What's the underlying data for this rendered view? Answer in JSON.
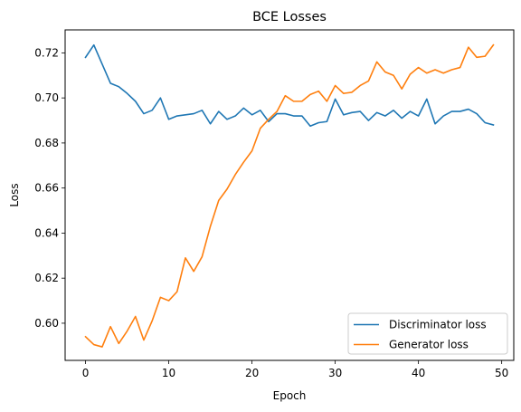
{
  "chart_data": {
    "type": "line",
    "title": "BCE Losses",
    "xlabel": "Epoch",
    "ylabel": "Loss",
    "xlim": [
      -2.45,
      51.45
    ],
    "ylim": [
      0.5835,
      0.7302
    ],
    "xticks": [
      0,
      10,
      20,
      30,
      40,
      50
    ],
    "yticks": [
      0.6,
      0.62,
      0.64,
      0.66,
      0.68,
      0.7,
      0.72
    ],
    "xtick_labels": [
      "0",
      "10",
      "20",
      "30",
      "40",
      "50"
    ],
    "ytick_labels": [
      "0.60",
      "0.62",
      "0.64",
      "0.66",
      "0.68",
      "0.70",
      "0.72"
    ],
    "grid": false,
    "legend_position": "lower-right",
    "x": [
      0,
      1,
      2,
      3,
      4,
      5,
      6,
      7,
      8,
      9,
      10,
      11,
      12,
      13,
      14,
      15,
      16,
      17,
      18,
      19,
      20,
      21,
      22,
      23,
      24,
      25,
      26,
      27,
      28,
      29,
      30,
      31,
      32,
      33,
      34,
      35,
      36,
      37,
      38,
      39,
      40,
      41,
      42,
      43,
      44,
      45,
      46,
      47,
      48,
      49
    ],
    "series": [
      {
        "name": "Discriminator loss",
        "color": "#1f77b4",
        "values": [
          0.718,
          0.7235,
          0.715,
          0.7065,
          0.705,
          0.702,
          0.6985,
          0.693,
          0.6945,
          0.7,
          0.6905,
          0.692,
          0.6925,
          0.693,
          0.6945,
          0.6885,
          0.694,
          0.6905,
          0.692,
          0.6955,
          0.6925,
          0.6945,
          0.6895,
          0.693,
          0.693,
          0.692,
          0.692,
          0.6875,
          0.689,
          0.6895,
          0.6995,
          0.6925,
          0.6935,
          0.694,
          0.69,
          0.6935,
          0.692,
          0.6945,
          0.691,
          0.694,
          0.692,
          0.6995,
          0.6885,
          0.692,
          0.694,
          0.694,
          0.695,
          0.693,
          0.689,
          0.688
        ]
      },
      {
        "name": "Generator loss",
        "color": "#ff7f0e",
        "values": [
          0.594,
          0.5905,
          0.5895,
          0.5985,
          0.591,
          0.5965,
          0.603,
          0.5925,
          0.601,
          0.6115,
          0.61,
          0.614,
          0.629,
          0.623,
          0.6295,
          0.643,
          0.6545,
          0.6595,
          0.666,
          0.6715,
          0.6765,
          0.6865,
          0.6905,
          0.694,
          0.701,
          0.6985,
          0.6985,
          0.7015,
          0.703,
          0.6985,
          0.7055,
          0.702,
          0.7025,
          0.7055,
          0.7075,
          0.716,
          0.7115,
          0.71,
          0.704,
          0.7105,
          0.7135,
          0.711,
          0.7125,
          0.711,
          0.7125,
          0.7135,
          0.7225,
          0.718,
          0.7185,
          0.7235
        ]
      }
    ]
  }
}
